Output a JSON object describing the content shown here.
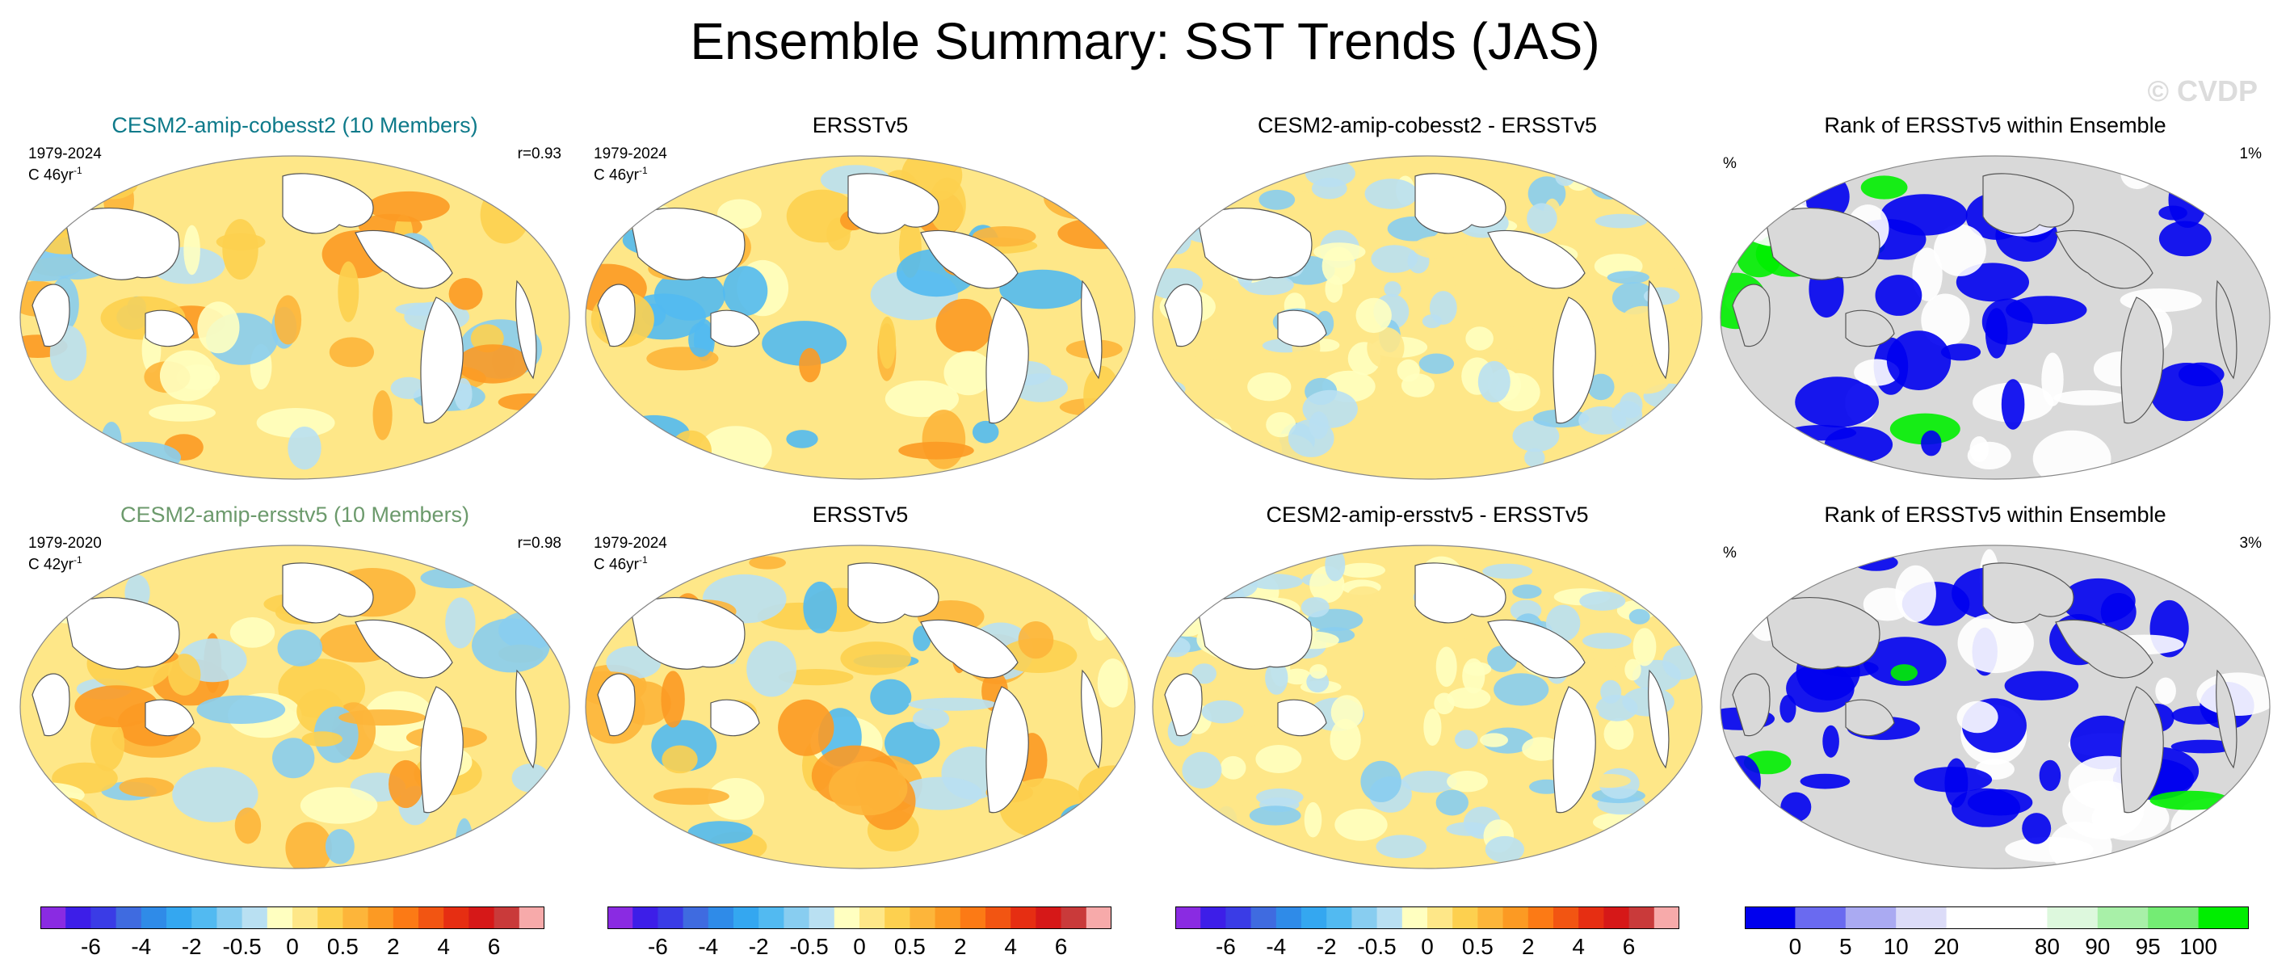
{
  "title": "Ensemble Summary: SST Trends (JAS)",
  "watermark": "© CVDP",
  "rows": [
    {
      "ensemble": {
        "title": "CESM2-amip-cobesst2 (10 Members)",
        "title_color": "#0e7a8a",
        "years": "1979-2024",
        "trend_unit": "C 46yr",
        "trend_exp": "-1",
        "corr": "r=0.93"
      },
      "obs": {
        "title": "ERSSTv5",
        "years": "1979-2024",
        "trend_unit": "C 46yr",
        "trend_exp": "-1"
      },
      "diff": {
        "title": "CESM2-amip-cobesst2 - ERSSTv5"
      },
      "rank": {
        "title": "Rank of ERSSTv5 within Ensemble",
        "pct_label": "%",
        "value": "1%"
      }
    },
    {
      "ensemble": {
        "title": "CESM2-amip-ersstv5 (10 Members)",
        "title_color": "#6c9a6c",
        "years": "1979-2020",
        "trend_unit": "C 42yr",
        "trend_exp": "-1",
        "corr": "r=0.98"
      },
      "obs": {
        "title": "ERSSTv5",
        "years": "1979-2024",
        "trend_unit": "C 46yr",
        "trend_exp": "-1"
      },
      "diff": {
        "title": "CESM2-amip-ersstv5 - ERSSTv5"
      },
      "rank": {
        "title": "Rank of ERSSTv5 within Ensemble",
        "pct_label": "%",
        "value": "3%"
      }
    }
  ],
  "colorbars": {
    "trend": {
      "colors": [
        "#8a2be2",
        "#3d1ee8",
        "#3a3ce6",
        "#3f6be0",
        "#2f8be8",
        "#34a7f0",
        "#52baf1",
        "#88cdf0",
        "#b9e0f2",
        "#ffffc0",
        "#fee788",
        "#fdd04f",
        "#fdb53a",
        "#fc9a23",
        "#fc7a15",
        "#f25512",
        "#e62e12",
        "#d61818",
        "#c93a3a",
        "#f7aaaa"
      ],
      "ticks": [
        "-6",
        "-4",
        "-2",
        "-0.5",
        "0",
        "0.5",
        "2",
        "4",
        "6"
      ]
    },
    "rank": {
      "colors": [
        "#0000ee",
        "#6a6af0",
        "#aaaaf2",
        "#dcdcf8",
        "#ffffff",
        "#ffffff",
        "#ddf8dd",
        "#a8f0a8",
        "#74ec74",
        "#00ee00"
      ],
      "ticks": [
        "0",
        "5",
        "10",
        "20",
        "80",
        "90",
        "95",
        "100"
      ]
    }
  },
  "colors": {
    "land": "#ffffff",
    "rank_land": "#d9d9d9",
    "coast": "#555555"
  }
}
